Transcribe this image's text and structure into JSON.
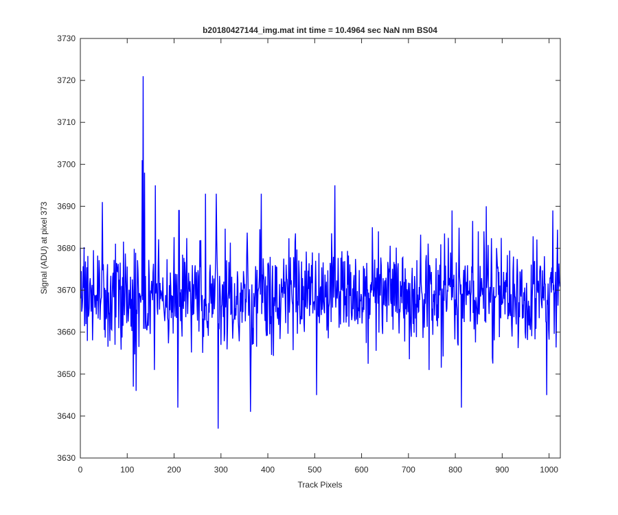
{
  "chart_data": {
    "type": "line",
    "title": "b20180427144_img.mat int time = 10.4964 sec  NaN nm BS04",
    "xlabel": "Track Pixels",
    "ylabel": "Signal (ADU) at pixel 373",
    "xlim": [
      0,
      1024
    ],
    "ylim": [
      3630,
      3730
    ],
    "xticks": [
      0,
      100,
      200,
      300,
      400,
      500,
      600,
      700,
      800,
      900,
      1000
    ],
    "yticks": [
      3630,
      3640,
      3650,
      3660,
      3670,
      3680,
      3690,
      3700,
      3710,
      3720,
      3730
    ],
    "grid": false,
    "series": [
      {
        "color": "#0000ff",
        "n_points": 1024,
        "baseline": 3669,
        "notable_points": [
          {
            "x": 132,
            "y": 3701
          },
          {
            "x": 134,
            "y": 3721
          },
          {
            "x": 137,
            "y": 3698
          },
          {
            "x": 113,
            "y": 3647
          },
          {
            "x": 119,
            "y": 3646
          },
          {
            "x": 208,
            "y": 3642
          },
          {
            "x": 294,
            "y": 3637
          },
          {
            "x": 363,
            "y": 3641
          },
          {
            "x": 504,
            "y": 3645
          },
          {
            "x": 813,
            "y": 3642
          },
          {
            "x": 995,
            "y": 3645
          },
          {
            "x": 47,
            "y": 3691
          },
          {
            "x": 160,
            "y": 3695
          },
          {
            "x": 267,
            "y": 3693
          },
          {
            "x": 290,
            "y": 3693
          },
          {
            "x": 386,
            "y": 3693
          },
          {
            "x": 543,
            "y": 3695
          },
          {
            "x": 866,
            "y": 3690
          },
          {
            "x": 1008,
            "y": 3689
          }
        ]
      }
    ]
  }
}
